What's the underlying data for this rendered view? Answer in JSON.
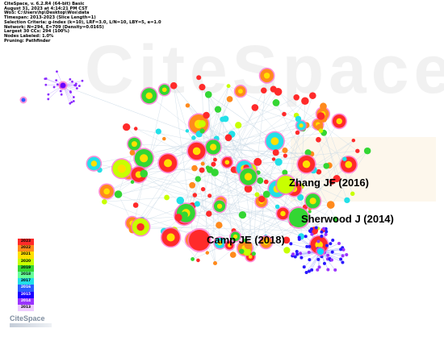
{
  "header": {
    "lines": [
      "CiteSpace, v. 6.2.R4 (64-bit) Basic",
      "August 31, 2023 at 4:14:21 PM CST",
      "WoS: C:\\Users\\hp\\Desktop\\Wos\\data",
      "Timespan: 2013-2023 (Slice Length=1)",
      "Selection Criteria: g-index (k=10), LRF=3.0, L/N=10, LBY=5, e=1.0",
      "Network: N=294, E=709 (Density=0.0165)",
      "Largest 30 CCs: 294 (100%)",
      "Nodes Labeled: 1.0%",
      "Pruning: Pathfinder"
    ]
  },
  "watermark": "CiteSpace",
  "labels": [
    {
      "id": "zhang",
      "text": "Zhang JF (2016)"
    },
    {
      "id": "sherwood",
      "text": "Sherwood J (2014)"
    },
    {
      "id": "camp",
      "text": "Camp JE (2018)"
    }
  ],
  "legend": {
    "years": [
      "2023",
      "2022",
      "2021",
      "2020",
      "2019",
      "2018",
      "2017",
      "2016",
      "2015",
      "2014",
      "2013"
    ],
    "colors": [
      "#ff2a2a",
      "#ff8a1c",
      "#ffe000",
      "#c8ff00",
      "#33d633",
      "#66ff99",
      "#22e0e8",
      "#2a5cff",
      "#1a00ff",
      "#9a33ff",
      "#eecbff"
    ]
  },
  "brand": {
    "name": "CiteSpace"
  }
}
